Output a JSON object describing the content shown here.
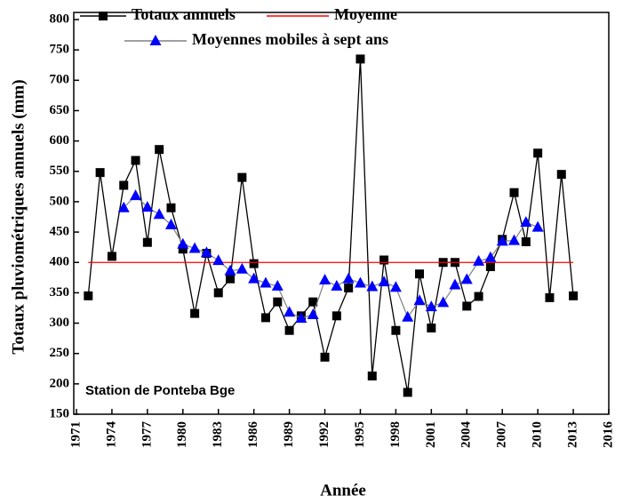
{
  "chart_data": {
    "type": "line",
    "y_label": "Totaux pluviométriques annuels (mm)",
    "x_label": "Année",
    "annotation": "Station de Ponteba Bge",
    "xlim": [
      1971,
      2016
    ],
    "xticks": [
      1971,
      1974,
      1977,
      1980,
      1983,
      1986,
      1989,
      1992,
      1995,
      1998,
      2001,
      2004,
      2007,
      2010,
      2013,
      2016
    ],
    "ylim": [
      150,
      800
    ],
    "yticks": [
      150,
      200,
      250,
      300,
      350,
      400,
      450,
      500,
      550,
      600,
      650,
      700,
      750,
      800
    ],
    "series": [
      {
        "name": "Totaux annuels",
        "color": "#000000",
        "marker": "square",
        "x": [
          1972,
          1973,
          1974,
          1975,
          1976,
          1977,
          1978,
          1979,
          1980,
          1981,
          1982,
          1983,
          1984,
          1985,
          1986,
          1987,
          1988,
          1989,
          1990,
          1991,
          1992,
          1993,
          1994,
          1995,
          1996,
          1997,
          1998,
          1999,
          2000,
          2001,
          2002,
          2003,
          2004,
          2005,
          2006,
          2007,
          2008,
          2009,
          2010,
          2011,
          2012,
          2013
        ],
        "values": [
          345,
          548,
          410,
          527,
          568,
          433,
          586,
          490,
          422,
          316,
          415,
          350,
          373,
          540,
          398,
          309,
          335,
          288,
          312,
          335,
          244,
          312,
          358,
          735,
          213,
          404,
          288,
          186,
          381,
          292,
          400,
          400,
          328,
          344,
          393,
          438,
          515,
          434,
          580,
          342,
          545,
          345
        ]
      },
      {
        "name": "Moyenne",
        "color": "#ff0000",
        "marker": "none",
        "x": [
          1972,
          2013
        ],
        "values": [
          400,
          400
        ]
      },
      {
        "name": "Moyennes mobiles à sept ans",
        "color": "#808080",
        "marker": "triangle",
        "marker_color": "#0000ff",
        "x": [
          1975,
          1976,
          1977,
          1978,
          1979,
          1980,
          1981,
          1982,
          1983,
          1984,
          1985,
          1986,
          1987,
          1988,
          1989,
          1990,
          1991,
          1992,
          1993,
          1994,
          1995,
          1996,
          1997,
          1998,
          1999,
          2000,
          2001,
          2002,
          2003,
          2004,
          2005,
          2006,
          2007,
          2008,
          2009,
          2010
        ],
        "values": [
          490,
          510,
          491,
          479,
          462,
          430,
          423,
          416,
          403,
          386,
          389,
          373,
          366,
          361,
          318,
          308,
          314,
          371,
          361,
          373,
          366,
          360,
          368,
          359,
          310,
          337,
          327,
          334,
          363,
          372,
          402,
          408,
          435,
          436,
          466,
          458
        ]
      }
    ]
  }
}
